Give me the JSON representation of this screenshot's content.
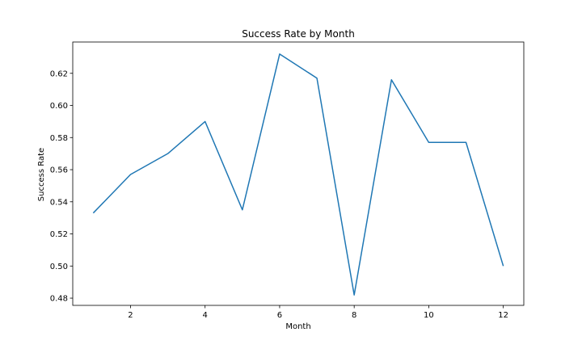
{
  "chart_data": {
    "type": "line",
    "title": "Success Rate by Month",
    "xlabel": "Month",
    "ylabel": "Success Rate",
    "xlim": [
      0.45,
      12.55
    ],
    "ylim": [
      0.4755,
      0.6395
    ],
    "xticks": [
      2,
      4,
      6,
      8,
      10,
      12
    ],
    "yticks": [
      0.48,
      0.5,
      0.52,
      0.54,
      0.56,
      0.58,
      0.6,
      0.62
    ],
    "ytick_labels": [
      "0.48",
      "0.50",
      "0.52",
      "0.54",
      "0.56",
      "0.58",
      "0.60",
      "0.62"
    ],
    "grid": false,
    "series": [
      {
        "color": "#1f77b4",
        "x": [
          1,
          2,
          3,
          4,
          5,
          6,
          7,
          8,
          9,
          10,
          11,
          12
        ],
        "y": [
          0.533,
          0.557,
          0.57,
          0.59,
          0.535,
          0.632,
          0.617,
          0.482,
          0.616,
          0.577,
          0.577,
          0.5
        ]
      }
    ]
  }
}
